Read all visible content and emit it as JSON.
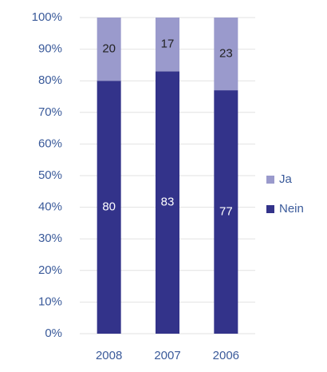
{
  "chart_data": {
    "type": "stacked_bar",
    "categories": [
      "2008",
      "2007",
      "2006"
    ],
    "series": [
      {
        "name": "Nein",
        "color": "#33338a",
        "values": [
          80,
          83,
          77
        ]
      },
      {
        "name": "Ja",
        "color": "#9a9acc",
        "values": [
          20,
          17,
          23
        ]
      }
    ],
    "ylim": [
      0,
      100
    ],
    "yticks": [
      {
        "value": 0,
        "label": "0%"
      },
      {
        "value": 10,
        "label": "10%"
      },
      {
        "value": 20,
        "label": "20%"
      },
      {
        "value": 30,
        "label": "30%"
      },
      {
        "value": 40,
        "label": "40%"
      },
      {
        "value": 50,
        "label": "50%"
      },
      {
        "value": 60,
        "label": "60%"
      },
      {
        "value": 70,
        "label": "70%"
      },
      {
        "value": 80,
        "label": "80%"
      },
      {
        "value": 90,
        "label": "90%"
      },
      {
        "value": 100,
        "label": "100%"
      }
    ],
    "grid": true,
    "legend": "right"
  }
}
